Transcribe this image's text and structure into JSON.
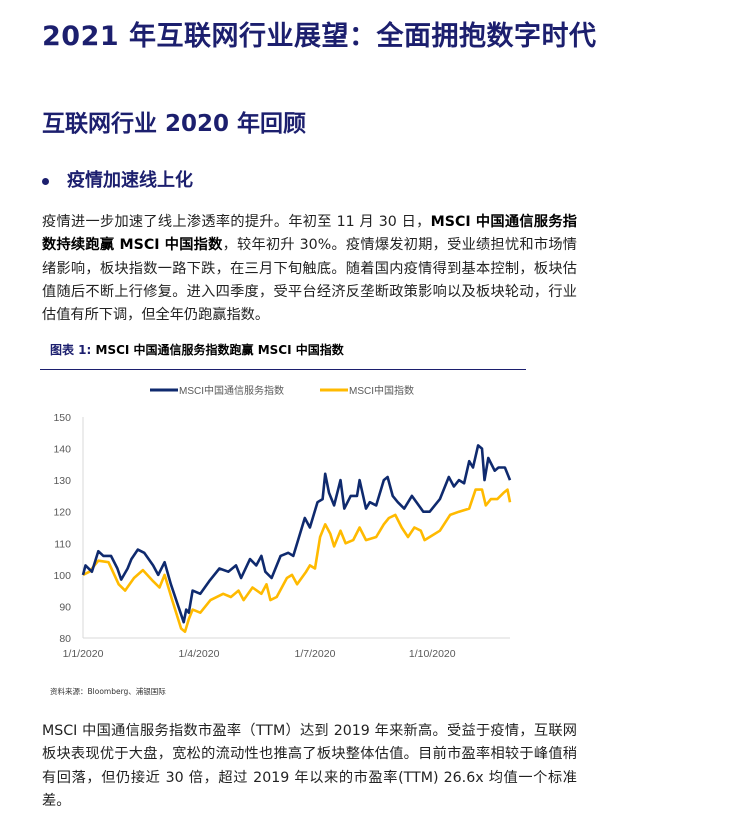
{
  "title": "2021 年互联网行业展望：全面拥抱数字时代",
  "section_title": "互联网行业 2020 年回顾",
  "bullet_heading": "疫情加速线上化",
  "paragraph1": {
    "seg1": "疫情进一步加速了线上渗透率的提升。年初至 11 月 30 日，",
    "seg2_bold": "MSCI 中国通信服务指数持续跑赢 MSCI 中国指数",
    "seg3": "，较年初升 30%。疫情爆发初期，受业绩担忧和市场情绪影响，板块指数一路下跌，在三月下旬触底。随着国内疫情得到基本控制，板块估值随后不断上行修复。进入四季度，受平台经济反垄断政策影响以及板块轮动，行业估值有所下调，但全年仍跑赢指数。"
  },
  "figure_caption": {
    "label": "图表 1:",
    "text": " MSCI 中国通信服务指数跑赢 MSCI 中国指数"
  },
  "source": "资料来源：Bloomberg、浦银国际",
  "paragraph2": "MSCI 中国通信服务指数市盈率（TTM）达到 2019 年来新高。受益于疫情，互联网板块表现优于大盘，宽松的流动性也推高了板块整体估值。目前市盈率相较于峰值稍有回落，但仍接近 30 倍，超过 2019 年以来的市盈率(TTM) 26.6x 均值一个标准差。",
  "chart_data": {
    "type": "line",
    "title": "",
    "xlabel": "",
    "ylabel": "",
    "ylim": [
      80,
      150
    ],
    "yticks": [
      "80",
      "90",
      "100",
      "110",
      "120",
      "130",
      "140",
      "150"
    ],
    "xticks": [
      {
        "day": 0,
        "label": "1/1/2020"
      },
      {
        "day": 91,
        "label": "1/4/2020"
      },
      {
        "day": 182,
        "label": "1/7/2020"
      },
      {
        "day": 274,
        "label": "1/10/2020"
      }
    ],
    "xlim_days": [
      0,
      335
    ],
    "legend_position": "top-center",
    "series": [
      {
        "name": "MSCI中国通信服务指数",
        "color": "#0f2a6e",
        "points": [
          [
            0,
            100
          ],
          [
            2,
            103
          ],
          [
            7,
            101
          ],
          [
            12,
            107.5
          ],
          [
            16,
            106
          ],
          [
            22,
            106
          ],
          [
            27,
            102
          ],
          [
            30,
            98.5
          ],
          [
            35,
            102
          ],
          [
            38,
            105
          ],
          [
            43,
            108
          ],
          [
            48,
            107
          ],
          [
            55,
            103
          ],
          [
            59,
            100
          ],
          [
            64,
            104
          ],
          [
            69,
            97
          ],
          [
            74,
            91
          ],
          [
            79,
            85
          ],
          [
            81,
            89
          ],
          [
            83,
            88
          ],
          [
            86,
            95
          ],
          [
            92,
            94
          ],
          [
            99,
            98
          ],
          [
            107,
            102
          ],
          [
            114,
            101
          ],
          [
            120,
            103
          ],
          [
            124,
            99
          ],
          [
            131,
            105
          ],
          [
            136,
            103
          ],
          [
            140,
            106
          ],
          [
            143,
            101
          ],
          [
            148,
            99
          ],
          [
            155,
            106
          ],
          [
            161,
            107
          ],
          [
            165,
            106
          ],
          [
            174,
            118
          ],
          [
            178,
            115
          ],
          [
            184,
            123
          ],
          [
            188,
            124
          ],
          [
            190,
            132
          ],
          [
            193,
            126
          ],
          [
            197,
            122
          ],
          [
            202,
            130
          ],
          [
            205,
            121
          ],
          [
            210,
            125
          ],
          [
            215,
            125
          ],
          [
            217,
            130
          ],
          [
            222,
            121
          ],
          [
            225,
            123
          ],
          [
            230,
            122
          ],
          [
            236,
            130
          ],
          [
            239,
            131
          ],
          [
            243,
            125
          ],
          [
            247,
            123
          ],
          [
            252,
            121
          ],
          [
            258,
            125
          ],
          [
            267,
            120
          ],
          [
            272,
            120
          ],
          [
            280,
            124
          ],
          [
            287,
            131
          ],
          [
            291,
            128
          ],
          [
            295,
            130
          ],
          [
            299,
            129
          ],
          [
            303,
            136
          ],
          [
            306,
            134
          ],
          [
            310,
            141
          ],
          [
            313,
            140
          ],
          [
            315,
            130
          ],
          [
            318,
            137
          ],
          [
            323,
            133
          ],
          [
            326,
            134
          ],
          [
            331,
            134
          ],
          [
            335,
            130
          ]
        ]
      },
      {
        "name": "MSCI中国指数",
        "color": "#ffba00",
        "points": [
          [
            0,
            100
          ],
          [
            5,
            101
          ],
          [
            12,
            104.5
          ],
          [
            20,
            104
          ],
          [
            28,
            97
          ],
          [
            33,
            95
          ],
          [
            40,
            99
          ],
          [
            47,
            101.5
          ],
          [
            55,
            98
          ],
          [
            60,
            96
          ],
          [
            64,
            100
          ],
          [
            70,
            92
          ],
          [
            77,
            83
          ],
          [
            80,
            82
          ],
          [
            83,
            86
          ],
          [
            86,
            89
          ],
          [
            92,
            88
          ],
          [
            100,
            92
          ],
          [
            110,
            94
          ],
          [
            116,
            93
          ],
          [
            122,
            95
          ],
          [
            126,
            92
          ],
          [
            133,
            96
          ],
          [
            140,
            94
          ],
          [
            144,
            97
          ],
          [
            147,
            92
          ],
          [
            152,
            93
          ],
          [
            160,
            99
          ],
          [
            164,
            100
          ],
          [
            168,
            97
          ],
          [
            175,
            101
          ],
          [
            178,
            103
          ],
          [
            182,
            102
          ],
          [
            186,
            112
          ],
          [
            190,
            116
          ],
          [
            194,
            113
          ],
          [
            197,
            109
          ],
          [
            202,
            114
          ],
          [
            206,
            110
          ],
          [
            212,
            111
          ],
          [
            217,
            115
          ],
          [
            222,
            111
          ],
          [
            230,
            112
          ],
          [
            236,
            116
          ],
          [
            240,
            118
          ],
          [
            245,
            119
          ],
          [
            250,
            115
          ],
          [
            255,
            112
          ],
          [
            260,
            115
          ],
          [
            265,
            114
          ],
          [
            268,
            111
          ],
          [
            272,
            112
          ],
          [
            280,
            114
          ],
          [
            288,
            119
          ],
          [
            295,
            120
          ],
          [
            303,
            121
          ],
          [
            308,
            127
          ],
          [
            313,
            127
          ],
          [
            316,
            122
          ],
          [
            320,
            124
          ],
          [
            325,
            124
          ],
          [
            330,
            126
          ],
          [
            333,
            127
          ],
          [
            335,
            123
          ]
        ]
      }
    ]
  }
}
